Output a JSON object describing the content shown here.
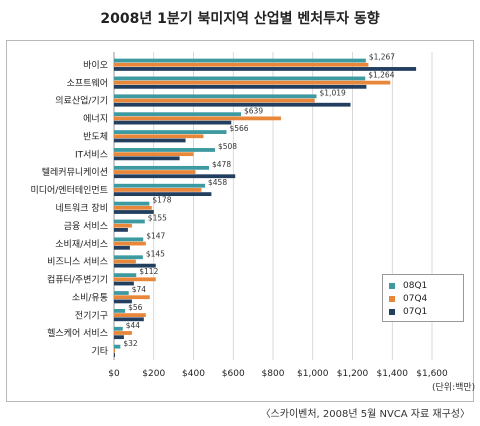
{
  "title": "2008년 1분기 북미지역 산업별 벤처투자 동향",
  "source_note": "〈스카이벤처, 2008년 5월 NVCA 자료 재구성〉",
  "unit_label": "(단위:백만)",
  "chart_data": {
    "type": "bar",
    "orientation": "horizontal",
    "categories": [
      "바이오",
      "소프트웨어",
      "의료산업/기기",
      "에너지",
      "반도체",
      "IT서비스",
      "텔레커뮤니케이션",
      "미디어/엔터테인먼트",
      "네트워크 장비",
      "금융 서비스",
      "소비재/서비스",
      "비즈니스 서비스",
      "컴퓨터/주변기기",
      "소비/유통",
      "전기기구",
      "헬스케어 서비스",
      "기타"
    ],
    "series": [
      {
        "name": "08Q1",
        "color": "#3d9aa0",
        "values": [
          1267,
          1264,
          1019,
          639,
          566,
          508,
          478,
          458,
          178,
          155,
          147,
          145,
          112,
          74,
          56,
          44,
          32
        ]
      },
      {
        "name": "07Q4",
        "color": "#e8873a",
        "values": [
          1280,
          1390,
          1010,
          840,
          450,
          400,
          410,
          440,
          190,
          90,
          160,
          110,
          210,
          180,
          160,
          90,
          5
        ]
      },
      {
        "name": "07Q1",
        "color": "#233f5f",
        "values": [
          1520,
          1270,
          1190,
          590,
          360,
          330,
          610,
          490,
          200,
          70,
          80,
          210,
          100,
          90,
          150,
          50,
          5
        ]
      }
    ],
    "data_labels": [
      "$1,267",
      "$1,264",
      "$1,019",
      "$639",
      "$566",
      "$508",
      "$478",
      "$458",
      "$178",
      "$155",
      "$147",
      "$145",
      "$112",
      "$74",
      "$56",
      "$44",
      "$32"
    ],
    "xlim": [
      0,
      1600
    ],
    "xticks": [
      0,
      200,
      400,
      600,
      800,
      1000,
      1200,
      1400,
      1600
    ],
    "xtick_labels": [
      "$0",
      "$200",
      "$400",
      "$600",
      "$800",
      "$1,000",
      "$1,200",
      "$1,400",
      "$1,600"
    ],
    "grid": true,
    "legend_position": "right"
  }
}
